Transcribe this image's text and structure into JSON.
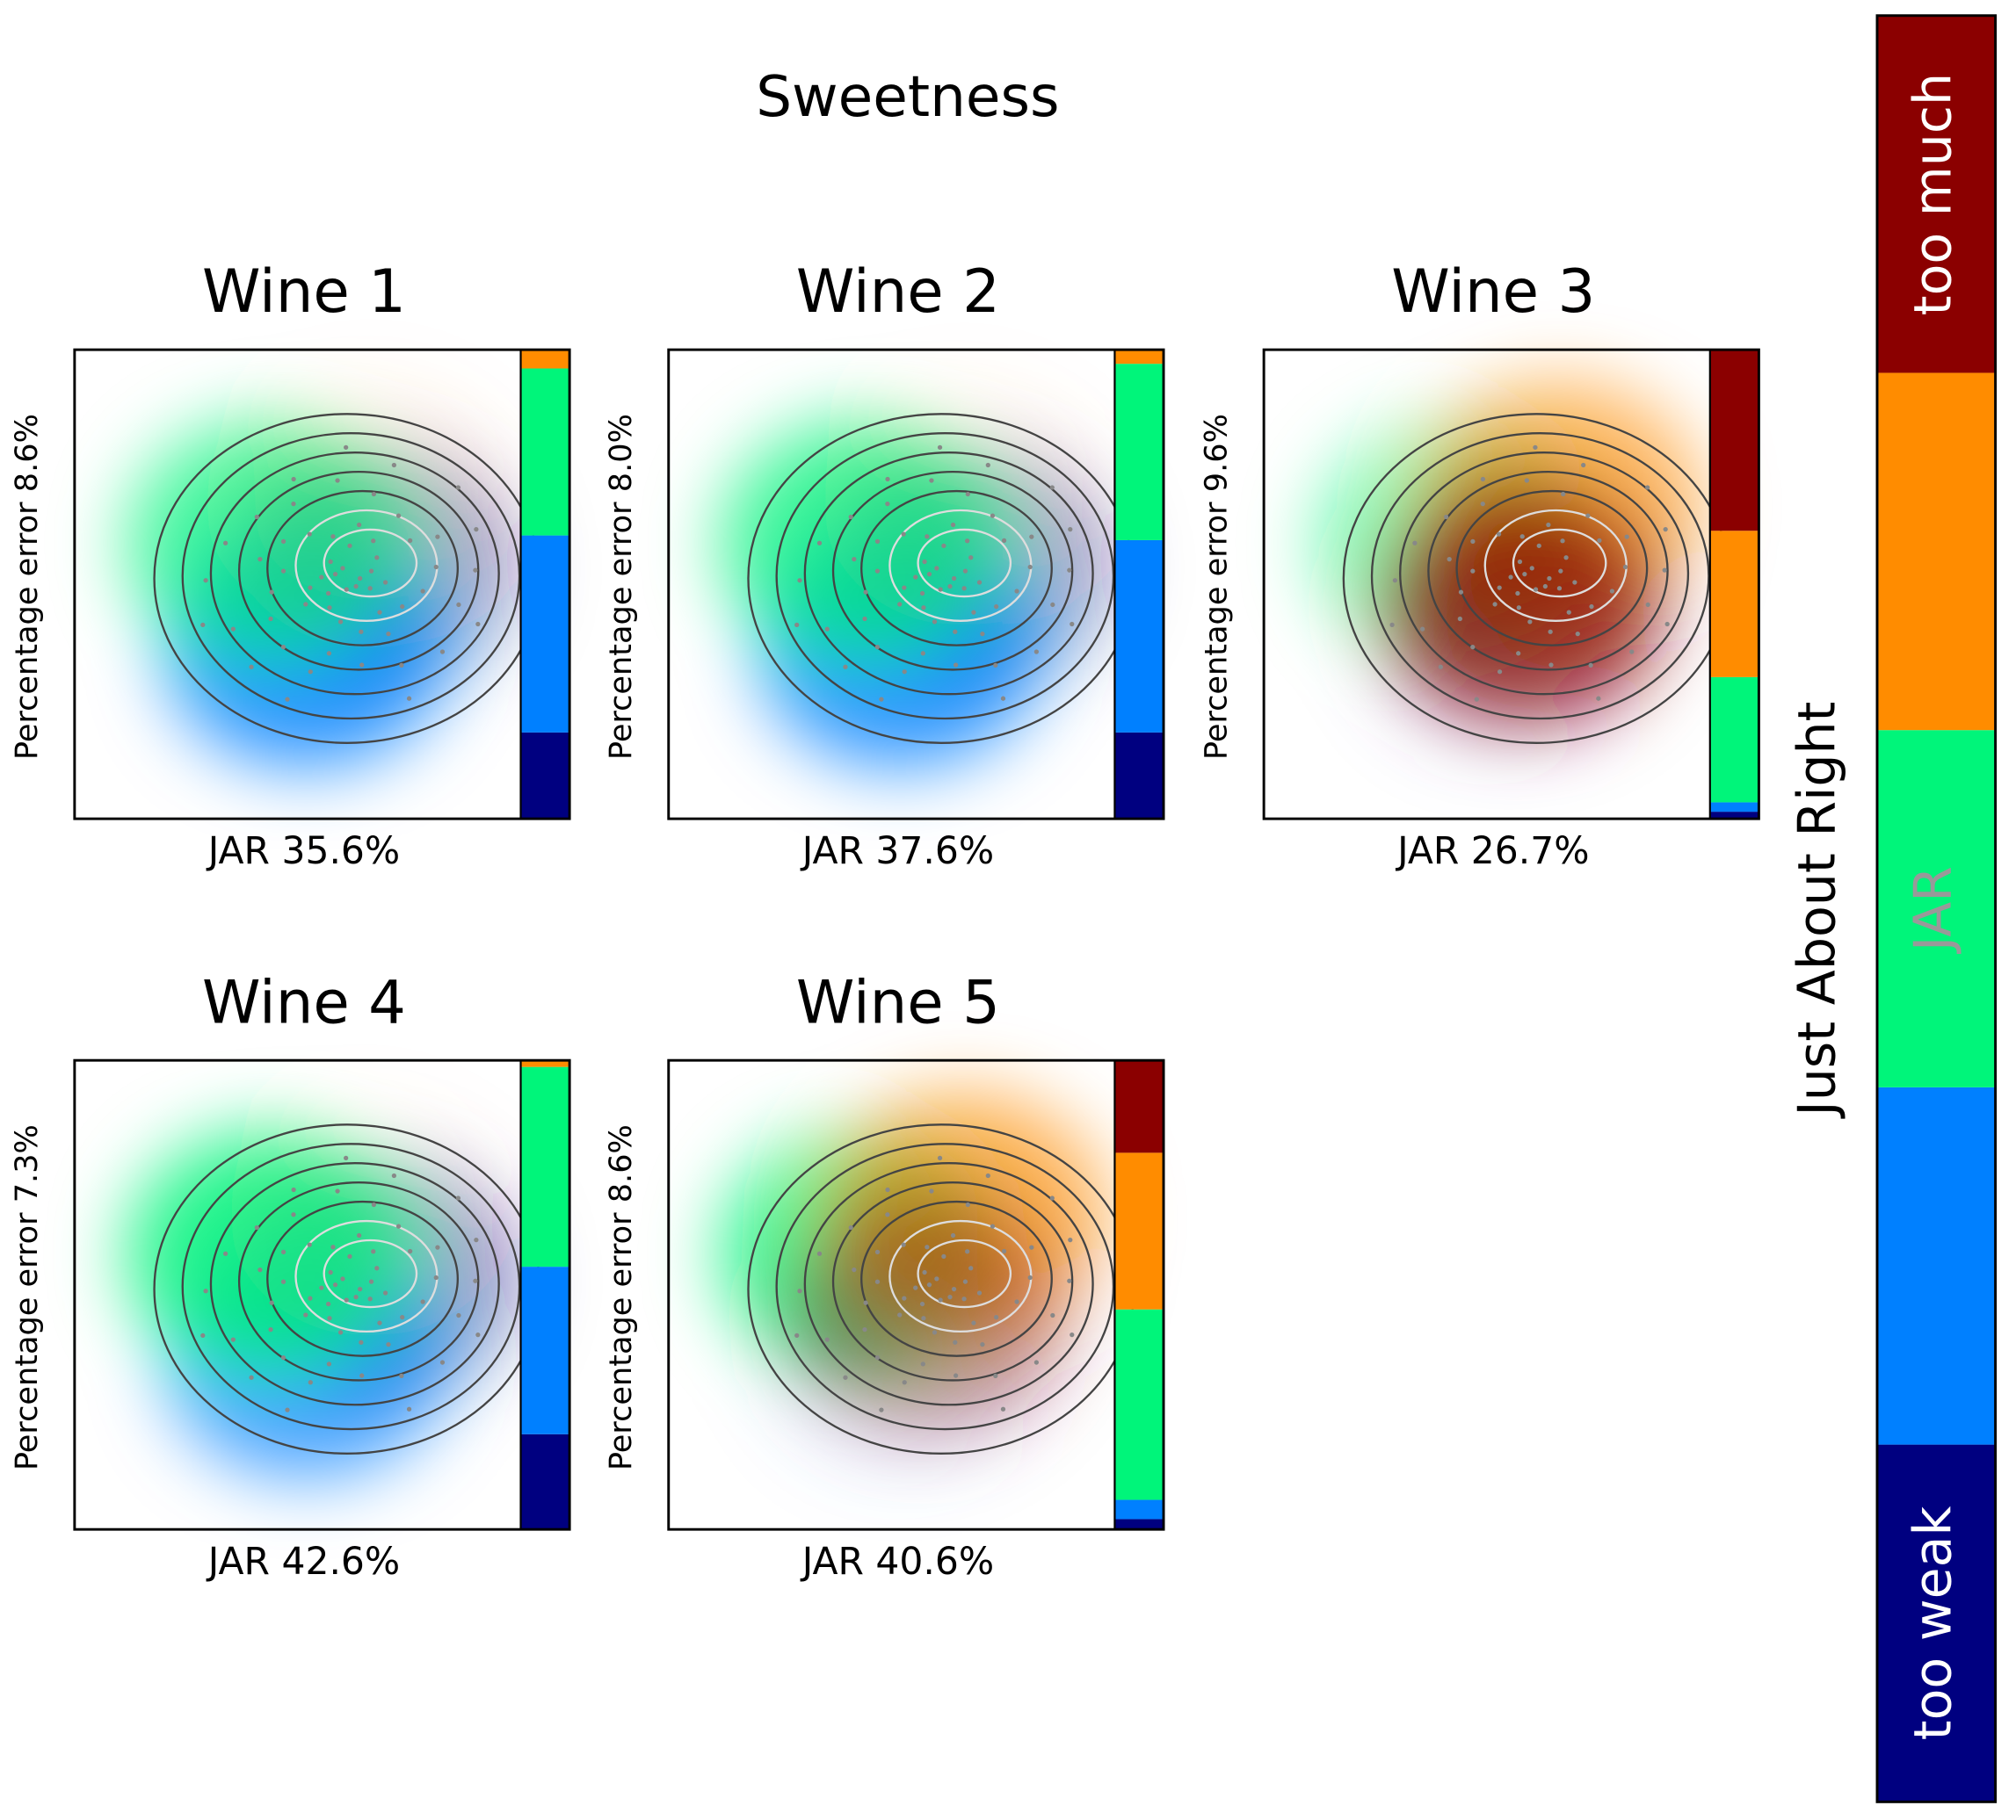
{
  "chart_data": {
    "type": "stacked_bar_panels",
    "title": "Sweetness",
    "ylim": [
      0,
      100
    ],
    "colorbar": {
      "label": "Just About Right",
      "categories": [
        "too weak",
        null,
        "JAR",
        null,
        "too much"
      ],
      "colors": [
        "#000080",
        "#0080ff",
        "#00f57a",
        "#ff8c00",
        "#8b0000"
      ]
    },
    "panels": [
      {
        "title": "Wine 1",
        "ylabel": "Percentage error 8.6%",
        "xlabel": "JAR 35.6%",
        "values": [
          18.4,
          42.0,
          35.6,
          4.0,
          0
        ]
      },
      {
        "title": "Wine 2",
        "ylabel": "Percentage error 8.0%",
        "xlabel": "JAR 37.6%",
        "values": [
          18.4,
          41.0,
          37.6,
          3.0,
          0
        ]
      },
      {
        "title": "Wine 3",
        "ylabel": "Percentage error 9.6%",
        "xlabel": "JAR 26.7%",
        "values": [
          1.5,
          2.0,
          26.7,
          31.2,
          38.6
        ]
      },
      {
        "title": "Wine 4",
        "ylabel": "Percentage error 7.3%",
        "xlabel": "JAR 42.6%",
        "values": [
          20.3,
          35.7,
          42.6,
          1.4,
          0
        ]
      },
      {
        "title": "Wine 5",
        "ylabel": "Percentage error 8.6%",
        "xlabel": "JAR 40.6%",
        "values": [
          2.2,
          4.1,
          40.6,
          33.4,
          19.7
        ]
      }
    ]
  }
}
